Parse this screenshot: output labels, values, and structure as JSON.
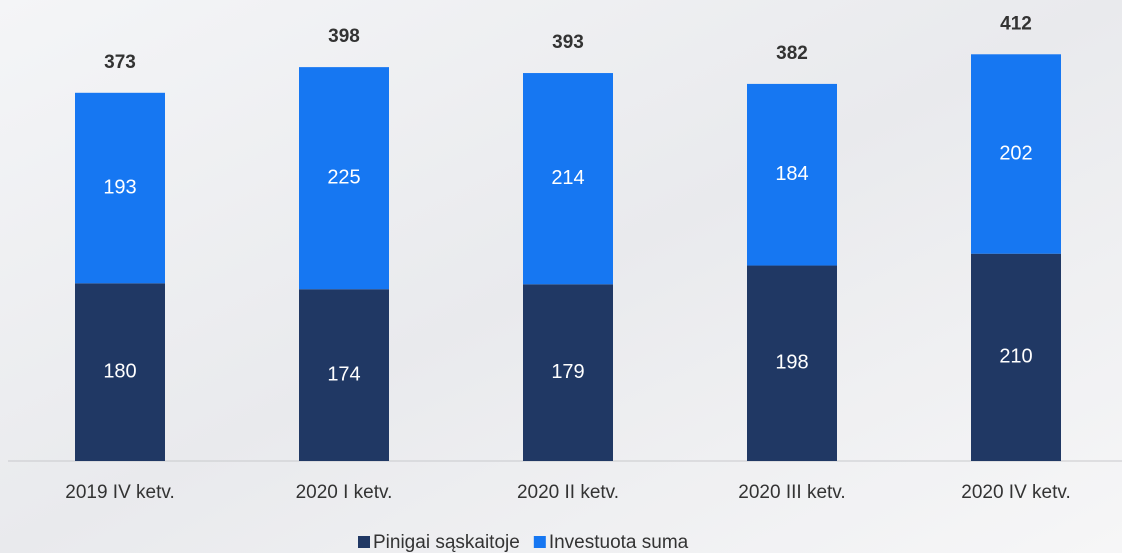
{
  "chart_data": {
    "type": "stacked_bar",
    "categories": [
      "2019 IV ketv.",
      "2020 I ketv.",
      "2020 II ketv.",
      "2020 III ketv.",
      "2020 IV ketv."
    ],
    "series": [
      {
        "name": "Pinigai sąskaitoje",
        "color": "#203864",
        "values": [
          180,
          174,
          179,
          198,
          210
        ]
      },
      {
        "name": "Investuota suma",
        "color": "#1677f2",
        "values": [
          193,
          225,
          214,
          184,
          202
        ]
      }
    ],
    "totals": [
      373,
      398,
      393,
      382,
      412
    ],
    "ylim": [
      0,
      467
    ],
    "legend": "bottom"
  }
}
